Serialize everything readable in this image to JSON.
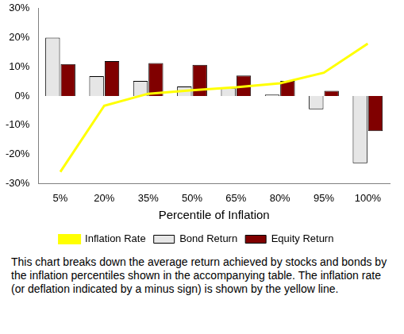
{
  "chart_data": {
    "type": "bar",
    "x_label": "Percentile of Inflation",
    "caption": "This chart breaks down the average return achieved by stocks and bonds by the inflation percentiles shown in the accompanying table. The inflation rate (or deflation indicated by a minus sign) is shown by the yellow line.",
    "categories": [
      "5%",
      "20%",
      "35%",
      "50%",
      "65%",
      "80%",
      "95%",
      "100%"
    ],
    "series": [
      {
        "name": "Bond Return",
        "type": "bar",
        "color": "#e6e6e6",
        "values": [
          20,
          6.8,
          5.2,
          3.3,
          2.8,
          0.5,
          -4.5,
          -23
        ]
      },
      {
        "name": "Equity Return",
        "type": "bar",
        "color": "#800000",
        "values": [
          11,
          12,
          11.3,
          10.7,
          7,
          5.2,
          1.8,
          -12
        ]
      },
      {
        "name": "Inflation Rate",
        "type": "line",
        "color": "#ffff00",
        "marker": "none",
        "line_style": "solid",
        "values": [
          -26,
          -3.3,
          0.8,
          2,
          3,
          4.4,
          8,
          18
        ]
      }
    ],
    "ylim": [
      -30,
      30
    ],
    "yticks": [
      {
        "value": -30,
        "label": "-30%"
      },
      {
        "value": -20,
        "label": "-20%"
      },
      {
        "value": -10,
        "label": "-10%"
      },
      {
        "value": 0,
        "label": "0%"
      },
      {
        "value": 10,
        "label": "10%"
      },
      {
        "value": 20,
        "label": "20%"
      },
      {
        "value": 30,
        "label": "30%"
      }
    ],
    "grid": false,
    "legend": "bottom"
  }
}
